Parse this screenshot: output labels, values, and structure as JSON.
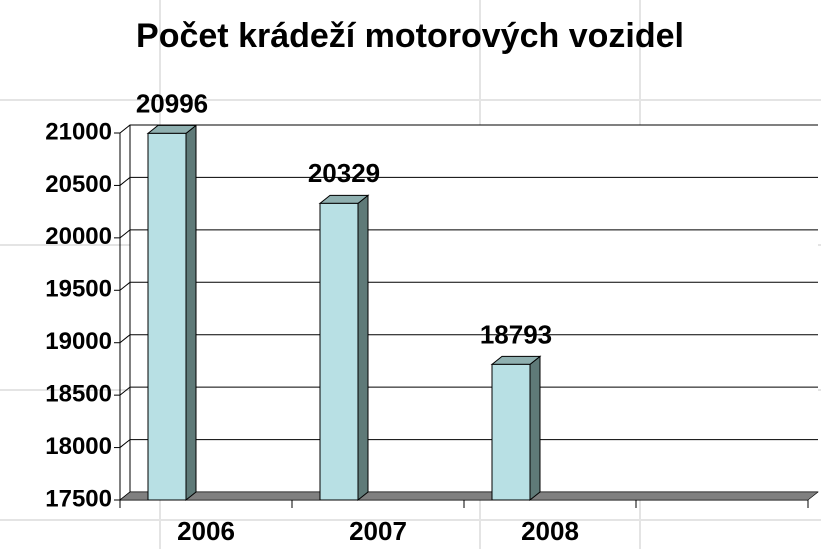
{
  "chart_data": {
    "type": "bar",
    "title": "Počet krádeží motorových vozidel",
    "categories": [
      "2006",
      "2007",
      "2008",
      null
    ],
    "values": [
      20996,
      20329,
      18793,
      null
    ],
    "color": "#b8e0e4",
    "ylim": [
      17500,
      21000
    ],
    "yticks": [
      17500,
      18000,
      18500,
      19000,
      19500,
      20000,
      20500,
      21000
    ],
    "grid": true
  }
}
